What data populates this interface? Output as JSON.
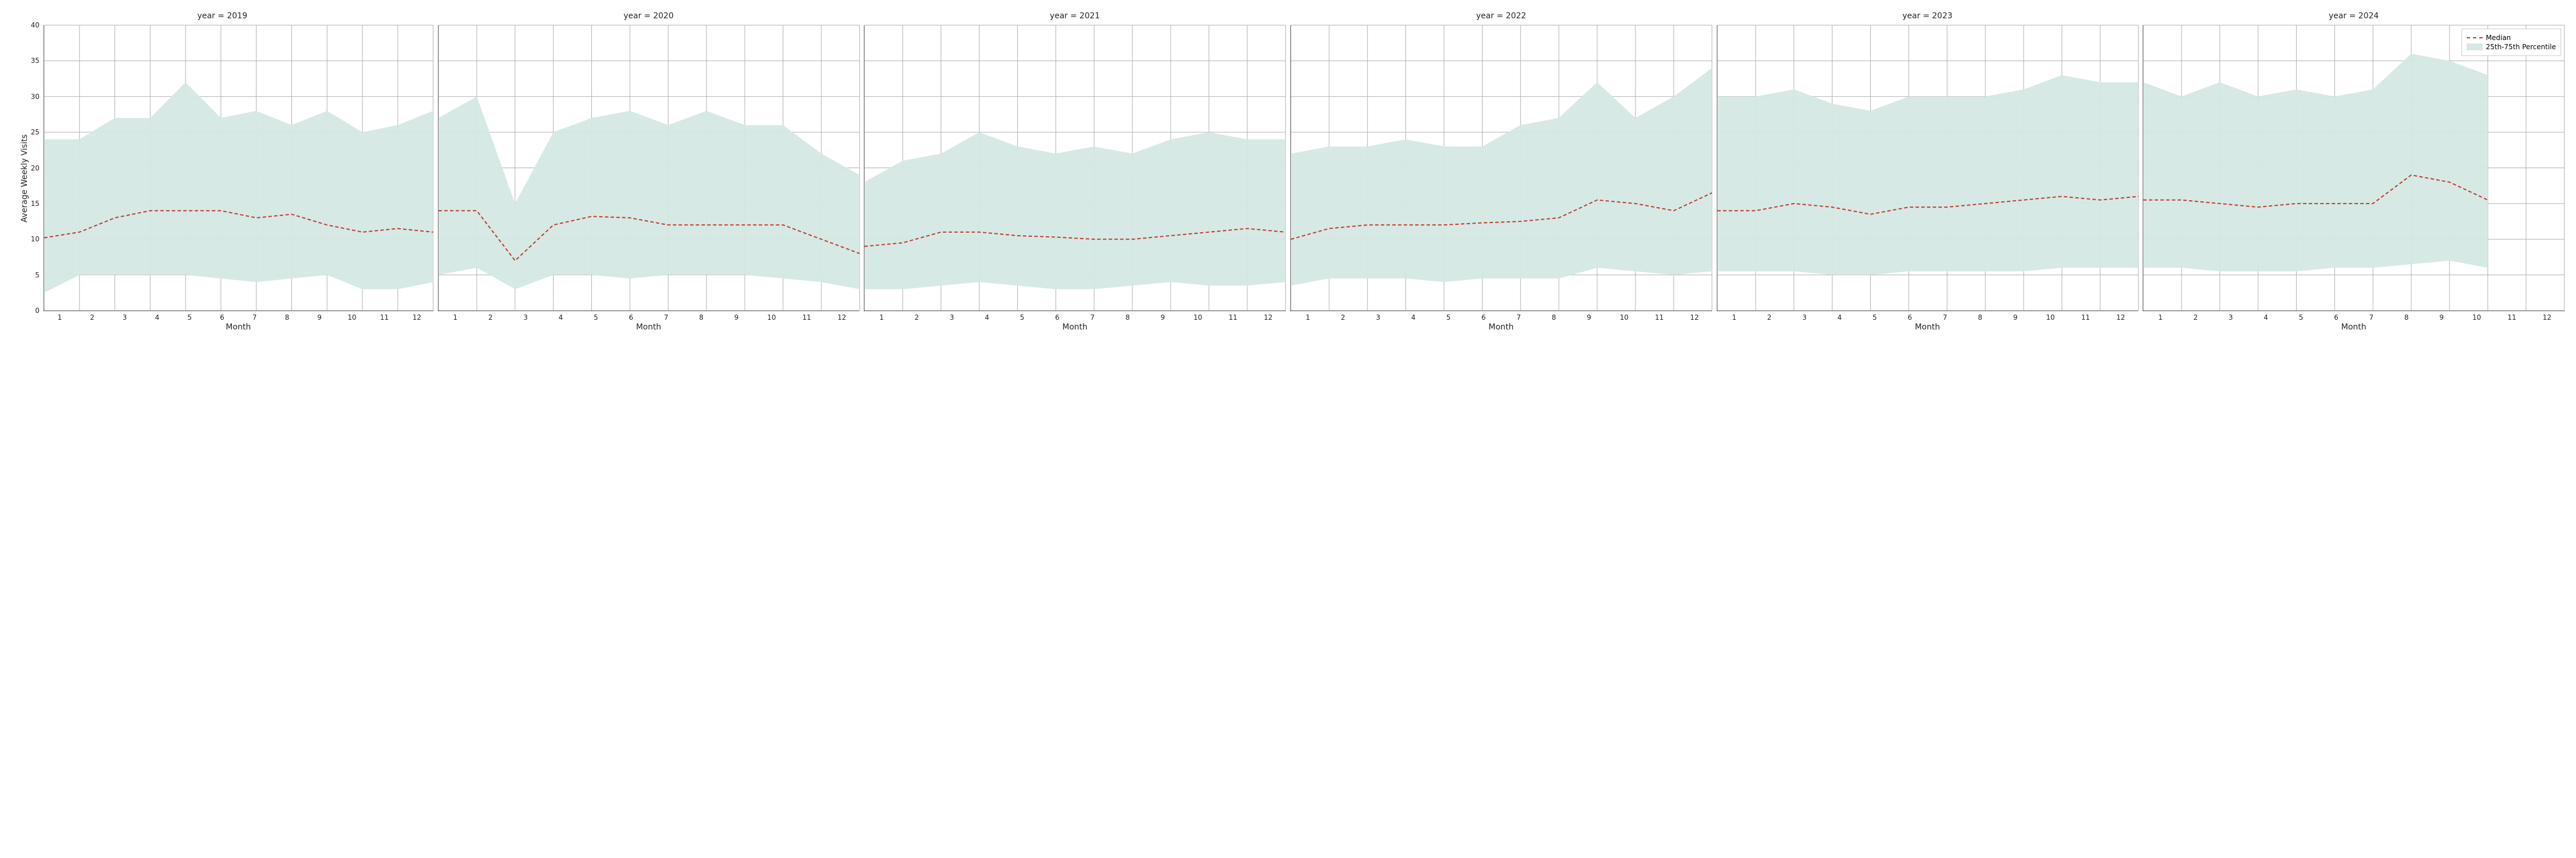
{
  "chart": {
    "type": "line-facet",
    "ylabel": "Average Weekly Visits",
    "xlabel": "Month",
    "ylim": [
      0,
      40
    ],
    "yticks": [
      0,
      5,
      10,
      15,
      20,
      25,
      30,
      35,
      40
    ],
    "xticks": [
      1,
      2,
      3,
      4,
      5,
      6,
      7,
      8,
      9,
      10,
      11,
      12
    ],
    "grid_color": "#b0b0b0",
    "background_color": "#ffffff",
    "band_color": "#d5e8e4",
    "median_color": "#c0392b",
    "median_dash": "6 4",
    "title_fontsize": 14,
    "tick_fontsize": 12,
    "legend": {
      "median_label": "Median",
      "band_label": "25th-75th Percentile"
    },
    "panels": [
      {
        "title": "year = 2019",
        "months": [
          1,
          2,
          3,
          4,
          5,
          6,
          7,
          8,
          9,
          10,
          11,
          12
        ],
        "median": [
          10.2,
          11.0,
          13.0,
          14.0,
          14.0,
          14.0,
          13.0,
          13.5,
          12.0,
          11.0,
          11.5,
          11.0
        ],
        "p25": [
          2.5,
          5.0,
          5.0,
          5.0,
          5.0,
          4.5,
          4.0,
          4.5,
          5.0,
          3.0,
          3.0,
          4.0
        ],
        "p75": [
          24,
          24,
          27,
          27,
          32,
          27,
          28,
          26,
          28,
          25,
          26,
          28
        ]
      },
      {
        "title": "year = 2020",
        "months": [
          1,
          2,
          3,
          4,
          5,
          6,
          7,
          8,
          9,
          10,
          11,
          12
        ],
        "median": [
          14.0,
          14.0,
          7.0,
          12.0,
          13.2,
          13.0,
          12.0,
          12.0,
          12.0,
          12.0,
          10.0,
          8.0
        ],
        "p25": [
          5.0,
          6.0,
          3.0,
          5.0,
          5.0,
          4.5,
          5.0,
          5.0,
          5.0,
          4.5,
          4.0,
          3.0
        ],
        "p75": [
          27,
          30,
          15,
          25,
          27,
          28,
          26,
          28,
          26,
          26,
          22,
          19
        ]
      },
      {
        "title": "year = 2021",
        "months": [
          1,
          2,
          3,
          4,
          5,
          6,
          7,
          8,
          9,
          10,
          11,
          12
        ],
        "median": [
          9.0,
          9.5,
          11.0,
          11.0,
          10.5,
          10.3,
          10.0,
          10.0,
          10.5,
          11.0,
          11.5,
          11.0
        ],
        "p25": [
          3.0,
          3.0,
          3.5,
          4.0,
          3.5,
          3.0,
          3.0,
          3.5,
          4.0,
          3.5,
          3.5,
          4.0
        ],
        "p75": [
          18,
          21,
          22,
          25,
          23,
          22,
          23,
          22,
          24,
          25,
          24,
          24
        ]
      },
      {
        "title": "year = 2022",
        "months": [
          1,
          2,
          3,
          4,
          5,
          6,
          7,
          8,
          9,
          10,
          11,
          12
        ],
        "median": [
          10.0,
          11.5,
          12.0,
          12.0,
          12.0,
          12.3,
          12.5,
          13.0,
          15.5,
          15.0,
          14.0,
          16.5
        ],
        "p25": [
          3.5,
          4.5,
          4.5,
          4.5,
          4.0,
          4.5,
          4.5,
          4.5,
          6.0,
          5.5,
          5.0,
          5.5
        ],
        "p75": [
          22,
          23,
          23,
          24,
          23,
          23,
          26,
          27,
          32,
          27,
          30,
          34
        ]
      },
      {
        "title": "year = 2023",
        "months": [
          1,
          2,
          3,
          4,
          5,
          6,
          7,
          8,
          9,
          10,
          11,
          12
        ],
        "median": [
          14.0,
          14.0,
          15.0,
          14.5,
          13.5,
          14.5,
          14.5,
          15.0,
          15.5,
          16.0,
          15.5,
          16.0
        ],
        "p25": [
          5.5,
          5.5,
          5.5,
          5.0,
          5.0,
          5.5,
          5.5,
          5.5,
          5.5,
          6.0,
          6.0,
          6.0
        ],
        "p75": [
          30,
          30,
          31,
          29,
          28,
          30,
          30,
          30,
          31,
          33,
          32,
          32
        ]
      },
      {
        "title": "year = 2024",
        "months": [
          1,
          2,
          3,
          4,
          5,
          6,
          7,
          8,
          9,
          10,
          11,
          12
        ],
        "median": [
          15.5,
          15.5,
          15.0,
          14.5,
          15.0,
          15.0,
          15.0,
          19.0,
          18.0,
          15.5,
          null,
          null
        ],
        "p25": [
          6.0,
          6.0,
          5.5,
          5.5,
          5.5,
          6.0,
          6.0,
          6.5,
          7.0,
          6.0,
          null,
          null
        ],
        "p75": [
          32,
          30,
          32,
          30,
          31,
          30,
          31,
          36,
          35,
          33,
          null,
          null
        ]
      }
    ]
  }
}
